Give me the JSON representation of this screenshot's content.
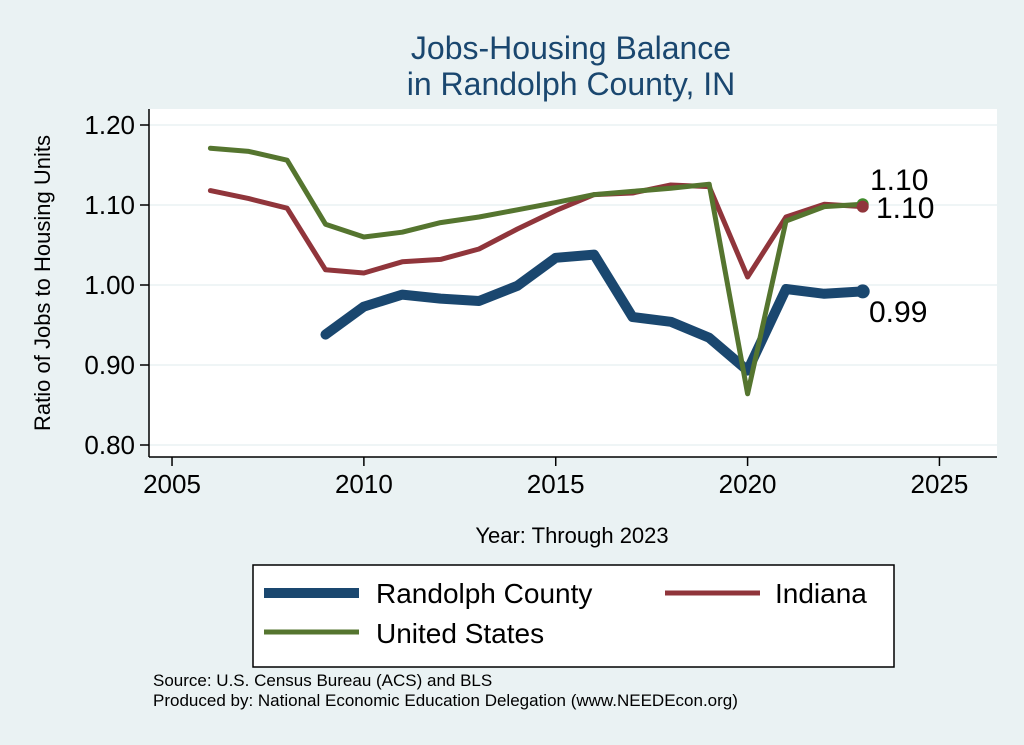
{
  "chart_data": {
    "type": "line",
    "title": [
      "Jobs-Housing Balance",
      "in Randolph County, IN"
    ],
    "xlabel": "Year: Through 2023",
    "ylabel": "Ratio of Jobs to Housing Units",
    "xlim": [
      2004.4,
      2026.5
    ],
    "ylim": [
      0.785,
      1.22
    ],
    "xticks": [
      2005,
      2010,
      2015,
      2020,
      2025
    ],
    "yticks": [
      0.8,
      0.9,
      1.0,
      1.1,
      1.2
    ],
    "ytick_labels": [
      "0.80",
      "0.90",
      "1.00",
      "1.10",
      "1.20"
    ],
    "grid": true,
    "series": [
      {
        "name": "Randolph County",
        "color": "#1a476f",
        "x": [
          2009,
          2010,
          2011,
          2012,
          2013,
          2014,
          2015,
          2016,
          2017,
          2018,
          2019,
          2020,
          2021,
          2022,
          2023
        ],
        "values": [
          0.938,
          0.973,
          0.988,
          0.983,
          0.98,
          0.999,
          1.034,
          1.038,
          0.96,
          0.954,
          0.934,
          0.893,
          0.995,
          0.989,
          0.992
        ],
        "end_label": "0.99"
      },
      {
        "name": "Indiana",
        "color": "#90353b",
        "x": [
          2006,
          2007,
          2008,
          2009,
          2010,
          2011,
          2012,
          2013,
          2014,
          2015,
          2016,
          2017,
          2018,
          2019,
          2020,
          2021,
          2022,
          2023
        ],
        "values": [
          1.118,
          1.108,
          1.096,
          1.019,
          1.015,
          1.029,
          1.032,
          1.045,
          1.07,
          1.093,
          1.113,
          1.115,
          1.125,
          1.123,
          1.01,
          1.085,
          1.101,
          1.098
        ],
        "end_label": "1.10"
      },
      {
        "name": "United States",
        "color": "#55752f",
        "x": [
          2006,
          2007,
          2008,
          2009,
          2010,
          2011,
          2012,
          2013,
          2014,
          2015,
          2016,
          2017,
          2018,
          2019,
          2020,
          2021,
          2022,
          2023
        ],
        "values": [
          1.171,
          1.167,
          1.156,
          1.076,
          1.06,
          1.066,
          1.078,
          1.085,
          1.094,
          1.103,
          1.113,
          1.117,
          1.121,
          1.126,
          0.864,
          1.08,
          1.098,
          1.101
        ],
        "end_label": "1.10"
      }
    ],
    "legend": {
      "position": "bottom",
      "columns": 2
    }
  },
  "source_line": "Source: U.S. Census Bureau (ACS) and BLS",
  "produced_line": "Produced by: National Economic Education Delegation (www.NEEDEcon.org)",
  "colors": {
    "background": "#eaf2f3",
    "plot_bg": "#ffffff",
    "grid": "#eaf2f3",
    "title": "#1a476f"
  }
}
